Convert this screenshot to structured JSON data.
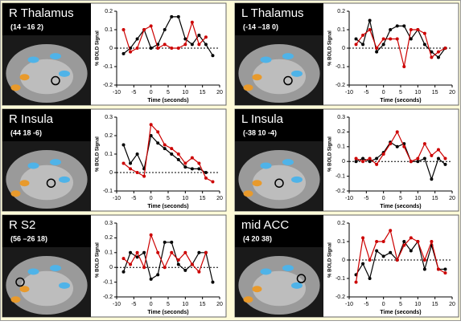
{
  "chart_data": [
    {
      "type": "line",
      "title": "R Thalamus",
      "subtitle": "(14 –16 2)",
      "xlabel": "Time (seconds)",
      "ylabel": "% BOLD Signal",
      "x": [
        -8,
        -6,
        -4,
        -2,
        0,
        2,
        4,
        6,
        8,
        10,
        12,
        14,
        16,
        18
      ],
      "xlim": [
        -10,
        20
      ],
      "xticks": [
        -10,
        -5,
        0,
        5,
        10,
        15,
        20
      ],
      "ylim": [
        -0.2,
        0.2
      ],
      "yticks": [
        -0.2,
        -0.1,
        0,
        0.1,
        0.2
      ],
      "series": [
        {
          "color": "#000000",
          "values": [
            -0.03,
            0.0,
            0.05,
            0.1,
            0.0,
            0.02,
            0.1,
            0.17,
            0.17,
            0.05,
            0.02,
            0.07,
            0.02,
            -0.04
          ]
        },
        {
          "color": "#cc0000",
          "values": [
            0.1,
            -0.02,
            0.0,
            0.1,
            0.12,
            0.0,
            0.02,
            0.0,
            0.0,
            0.02,
            0.14,
            0.02,
            0.06,
            null
          ]
        }
      ]
    },
    {
      "type": "line",
      "title": "L Thalamus",
      "subtitle": "(-14 –18 0)",
      "xlabel": "Time (seconds)",
      "ylabel": "% BOLD Signal",
      "x": [
        -8,
        -6,
        -4,
        -2,
        0,
        2,
        4,
        6,
        8,
        10,
        12,
        14,
        16,
        18
      ],
      "xlim": [
        -10,
        20
      ],
      "xticks": [
        -10,
        -5,
        0,
        5,
        10,
        15,
        20
      ],
      "ylim": [
        -0.2,
        0.2
      ],
      "yticks": [
        -0.2,
        -0.1,
        0,
        0.1,
        0.2
      ],
      "series": [
        {
          "color": "#000000",
          "values": [
            0.05,
            0.02,
            0.15,
            -0.02,
            0.02,
            0.1,
            0.12,
            0.12,
            0.05,
            0.1,
            0.02,
            -0.02,
            -0.05,
            0.0
          ]
        },
        {
          "color": "#cc0000",
          "values": [
            0.02,
            0.07,
            0.1,
            0.0,
            0.05,
            0.05,
            0.05,
            -0.1,
            0.1,
            0.1,
            0.08,
            -0.05,
            -0.02,
            0.0
          ]
        }
      ]
    },
    {
      "type": "line",
      "title": "R Insula",
      "subtitle": "(44 18 -6)",
      "xlabel": "Time (seconds)",
      "ylabel": "% BOLD Signal",
      "x": [
        -8,
        -6,
        -4,
        -2,
        0,
        2,
        4,
        6,
        8,
        10,
        12,
        14,
        16,
        18
      ],
      "xlim": [
        -10,
        20
      ],
      "xticks": [
        -10,
        -5,
        0,
        5,
        10,
        15,
        20
      ],
      "ylim": [
        -0.1,
        0.3
      ],
      "yticks": [
        -0.1,
        0,
        0.1,
        0.2,
        0.3
      ],
      "series": [
        {
          "color": "#000000",
          "values": [
            0.15,
            0.05,
            0.1,
            0.02,
            0.2,
            0.16,
            0.13,
            0.1,
            0.07,
            0.03,
            0.02,
            0.02,
            0.0,
            null
          ]
        },
        {
          "color": "#cc0000",
          "values": [
            0.05,
            0.02,
            0.0,
            -0.02,
            0.26,
            0.22,
            0.15,
            0.13,
            0.1,
            0.05,
            0.08,
            0.05,
            -0.03,
            -0.05
          ]
        }
      ]
    },
    {
      "type": "line",
      "title": "L Insula",
      "subtitle": "(-38 10 -4)",
      "xlabel": "Time (seconds)",
      "ylabel": "% BOLD Signal",
      "x": [
        -8,
        -6,
        -4,
        -2,
        0,
        2,
        4,
        6,
        8,
        10,
        12,
        14,
        16,
        18
      ],
      "xlim": [
        -10,
        20
      ],
      "xticks": [
        -10,
        -5,
        0,
        5,
        10,
        15,
        20
      ],
      "ylim": [
        -0.2,
        0.3
      ],
      "yticks": [
        -0.2,
        -0.1,
        0,
        0.1,
        0.2,
        0.3
      ],
      "series": [
        {
          "color": "#000000",
          "values": [
            0.0,
            0.02,
            0.0,
            0.02,
            0.06,
            0.13,
            0.1,
            0.12,
            0.0,
            0.0,
            0.02,
            -0.12,
            0.02,
            -0.02
          ]
        },
        {
          "color": "#cc0000",
          "values": [
            0.02,
            0.0,
            0.02,
            -0.02,
            0.05,
            0.12,
            0.2,
            0.1,
            0.0,
            0.02,
            0.12,
            0.04,
            0.08,
            0.02
          ]
        }
      ]
    },
    {
      "type": "line",
      "title": "R S2",
      "subtitle": "(56 –26 18)",
      "xlabel": "Time (seconds)",
      "ylabel": "% BOLD Signal",
      "x": [
        -8,
        -6,
        -4,
        -2,
        0,
        2,
        4,
        6,
        8,
        10,
        12,
        14,
        16,
        18
      ],
      "xlim": [
        -10,
        20
      ],
      "xticks": [
        -10,
        -5,
        0,
        5,
        10,
        15,
        20
      ],
      "ylim": [
        -0.2,
        0.3
      ],
      "yticks": [
        -0.2,
        -0.1,
        0,
        0.1,
        0.2,
        0.3
      ],
      "series": [
        {
          "color": "#000000",
          "values": [
            -0.03,
            0.1,
            0.07,
            0.1,
            -0.08,
            -0.05,
            0.17,
            0.17,
            0.02,
            -0.02,
            0.02,
            0.1,
            0.1,
            -0.1
          ]
        },
        {
          "color": "#cc0000",
          "values": [
            0.06,
            0.02,
            0.1,
            0.0,
            0.22,
            0.1,
            0.0,
            0.1,
            0.05,
            0.1,
            0.02,
            -0.03,
            0.1,
            null
          ]
        }
      ]
    },
    {
      "type": "line",
      "title": "mid ACC",
      "subtitle": "(4 20 38)",
      "xlabel": "Time (seconds)",
      "ylabel": "% BOLD Signal",
      "x": [
        -8,
        -6,
        -4,
        -2,
        0,
        2,
        4,
        6,
        8,
        10,
        12,
        14,
        16,
        18
      ],
      "xlim": [
        -10,
        20
      ],
      "xticks": [
        -10,
        -5,
        0,
        5,
        10,
        15,
        20
      ],
      "ylim": [
        -0.2,
        0.2
      ],
      "yticks": [
        -0.2,
        -0.1,
        0,
        0.1,
        0.2
      ],
      "series": [
        {
          "color": "#000000",
          "values": [
            -0.08,
            -0.02,
            -0.1,
            0.05,
            0.02,
            0.04,
            0.0,
            0.1,
            0.05,
            0.1,
            -0.05,
            0.08,
            -0.05,
            -0.05
          ]
        },
        {
          "color": "#cc0000",
          "values": [
            -0.12,
            0.12,
            0.0,
            0.1,
            0.1,
            0.16,
            0.0,
            0.08,
            0.12,
            0.1,
            0.0,
            0.1,
            -0.05,
            -0.07
          ]
        }
      ]
    }
  ]
}
